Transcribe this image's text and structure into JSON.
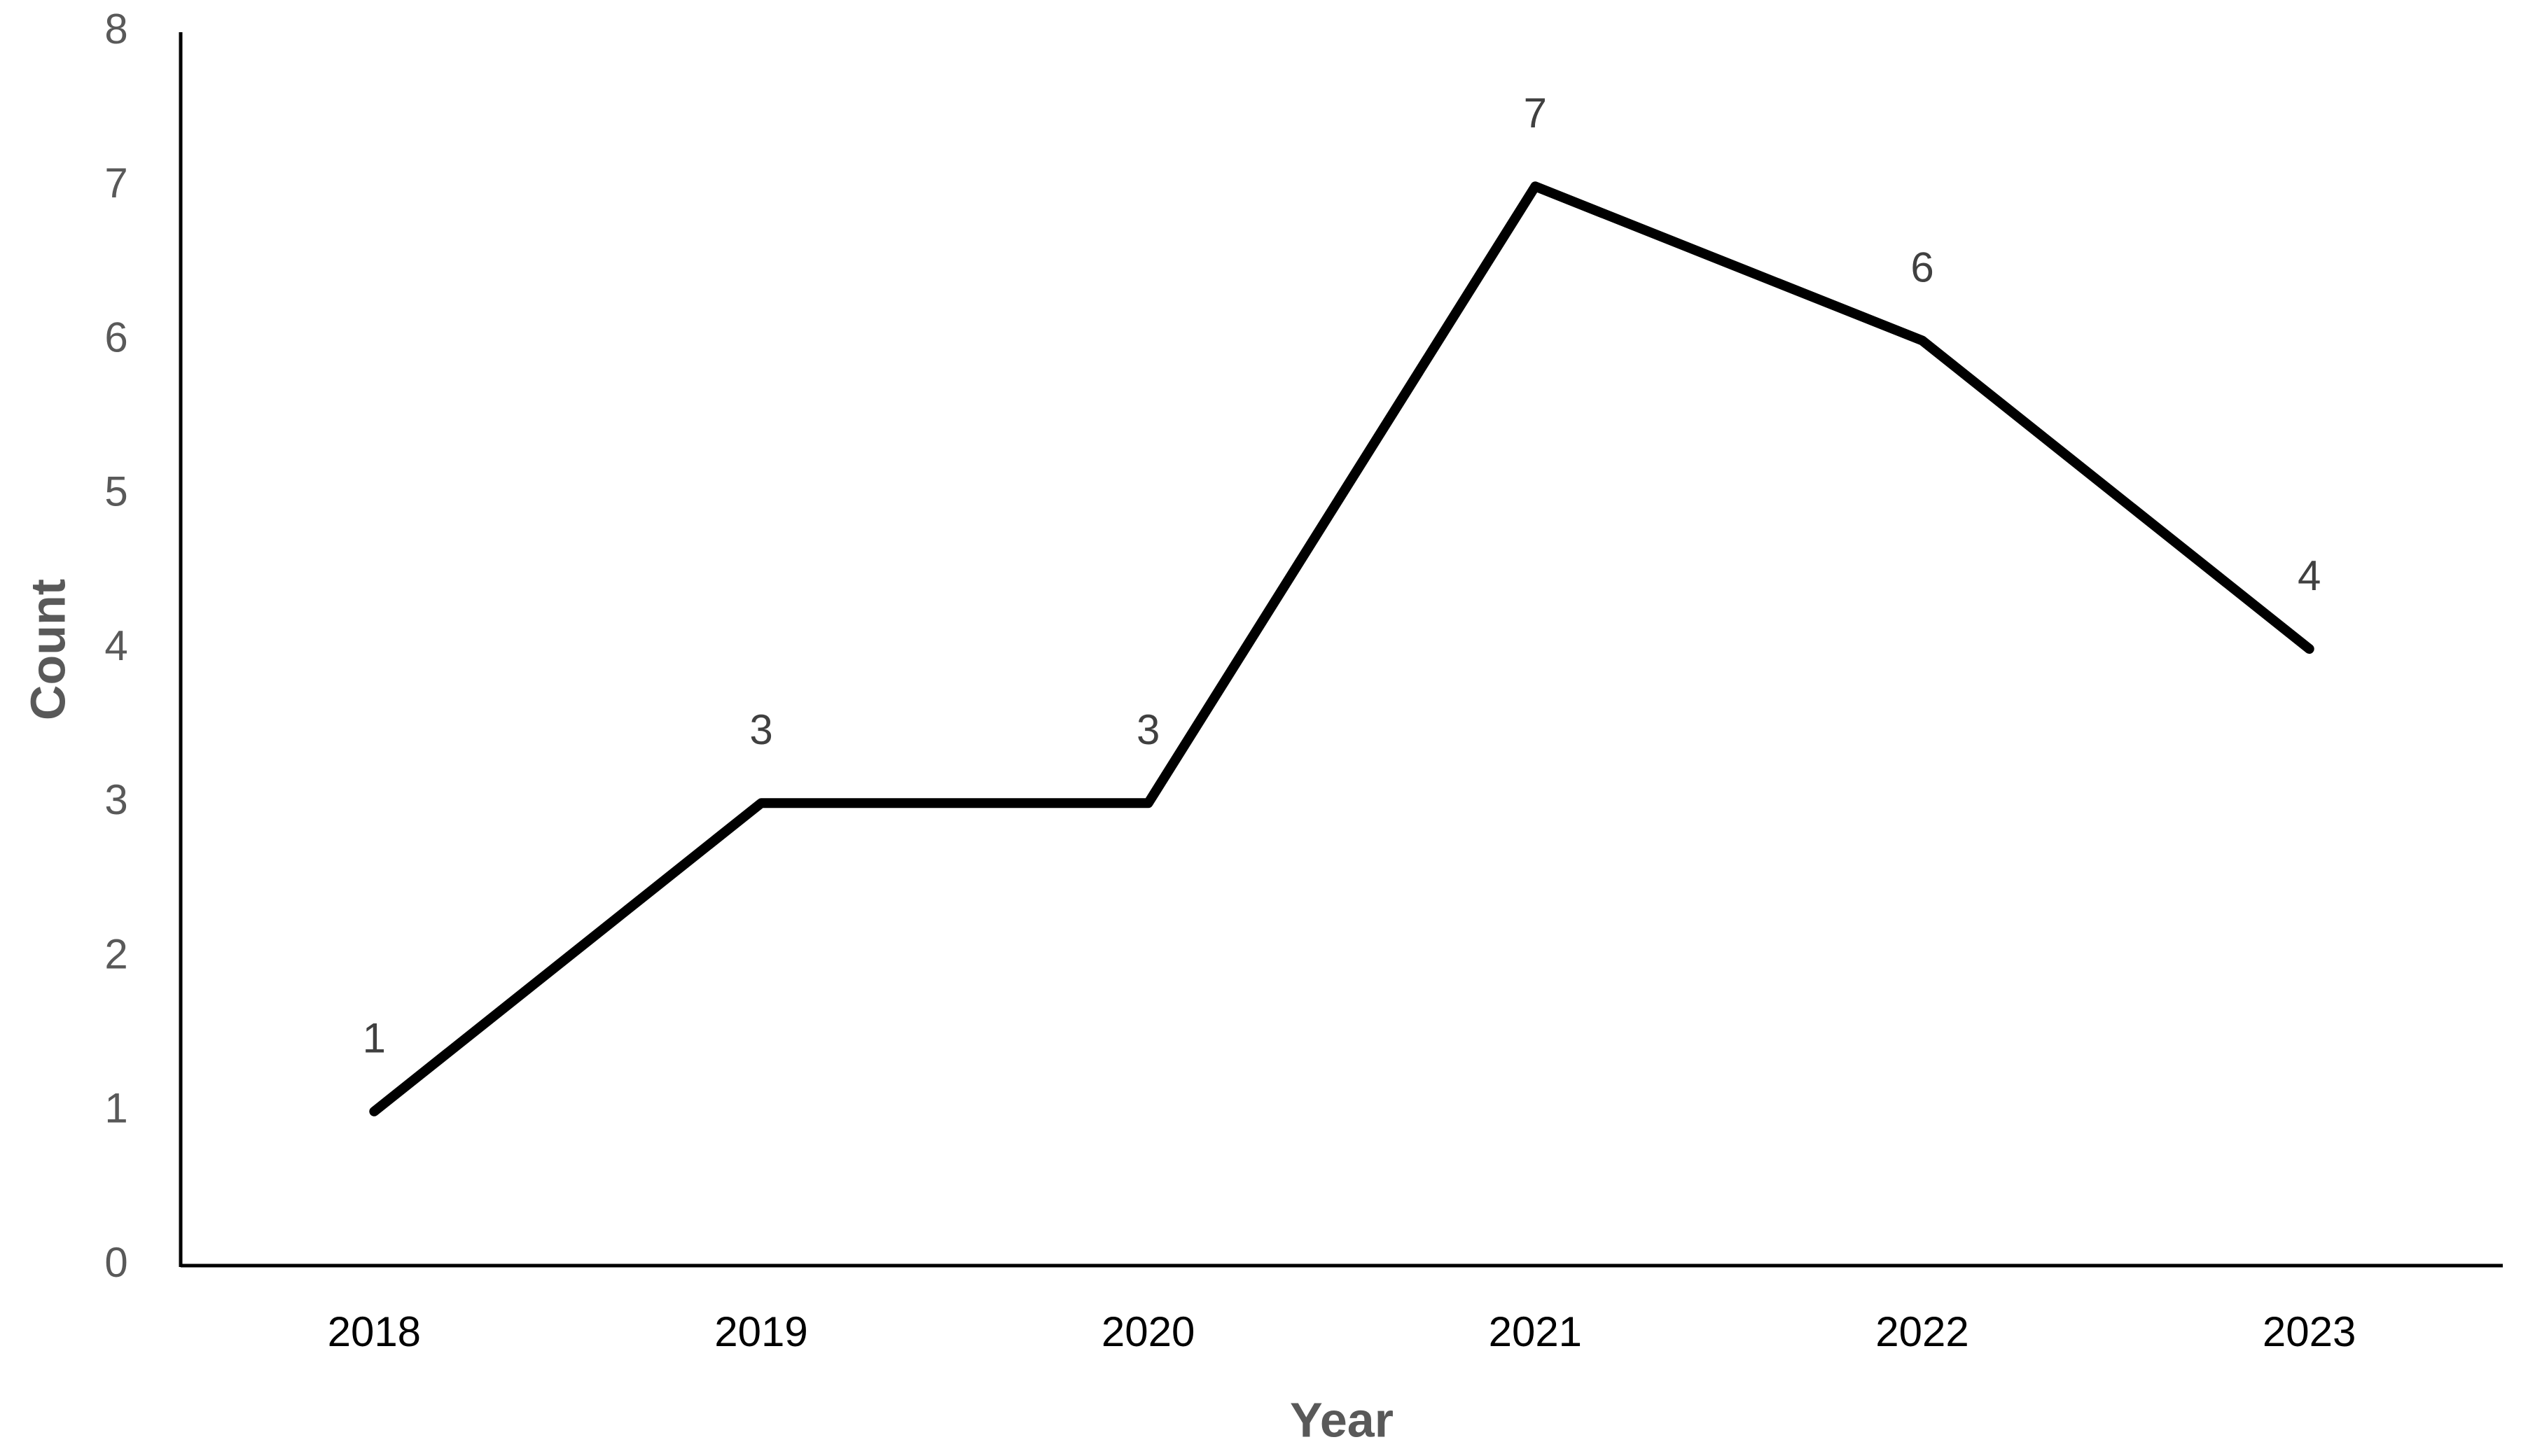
{
  "chart_data": {
    "type": "line",
    "categories": [
      "2018",
      "2019",
      "2020",
      "2021",
      "2022",
      "2023"
    ],
    "values": [
      1,
      3,
      3,
      7,
      6,
      4
    ],
    "color": "#000000",
    "xlabel": "Year",
    "ylabel": "Count",
    "ylim": [
      0,
      8
    ],
    "yticks": [
      0,
      1,
      2,
      3,
      4,
      5,
      6,
      7,
      8
    ],
    "grid": false,
    "data_labels": true
  }
}
